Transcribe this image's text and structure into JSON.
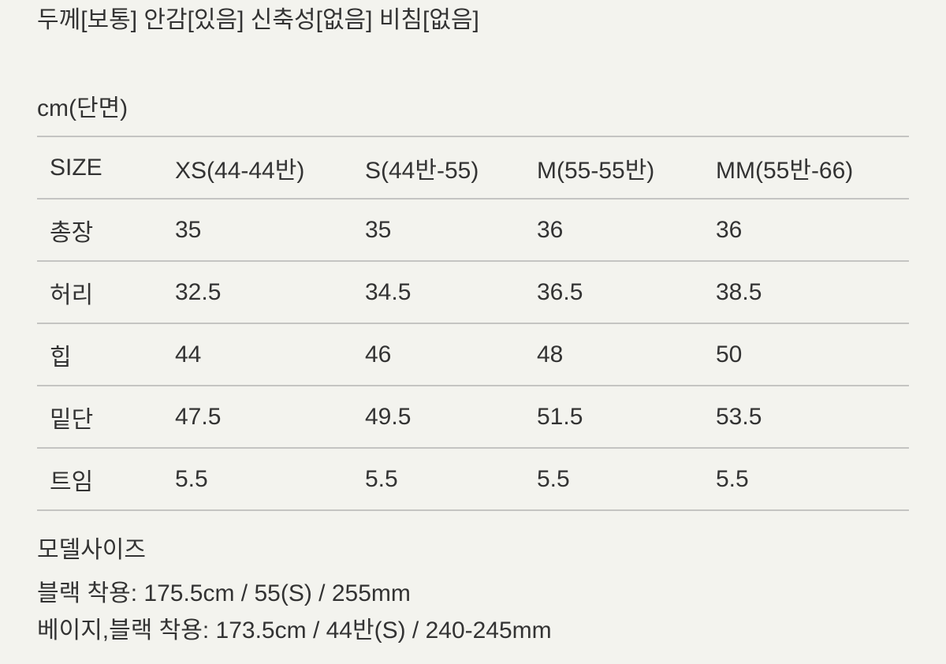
{
  "fabric_info": "두께[보통] 안감[있음] 신축성[없음] 비침[없음]",
  "unit_label": "cm(단면)",
  "size_table": {
    "header": [
      "SIZE",
      "XS(44-44반)",
      "S(44반-55)",
      "M(55-55반)",
      "MM(55반-66)"
    ],
    "rows": [
      [
        "총장",
        "35",
        "35",
        "36",
        "36"
      ],
      [
        "허리",
        "32.5",
        "34.5",
        "36.5",
        "38.5"
      ],
      [
        "힙",
        "44",
        "46",
        "48",
        "50"
      ],
      [
        "밑단",
        "47.5",
        "49.5",
        "51.5",
        "53.5"
      ],
      [
        "트임",
        "5.5",
        "5.5",
        "5.5",
        "5.5"
      ]
    ]
  },
  "model": {
    "title": "모델사이즈",
    "lines": [
      "블랙 착용: 175.5cm / 55(S) / 255mm",
      "베이지,블랙 착용: 173.5cm / 44반(S) / 240-245mm"
    ]
  }
}
